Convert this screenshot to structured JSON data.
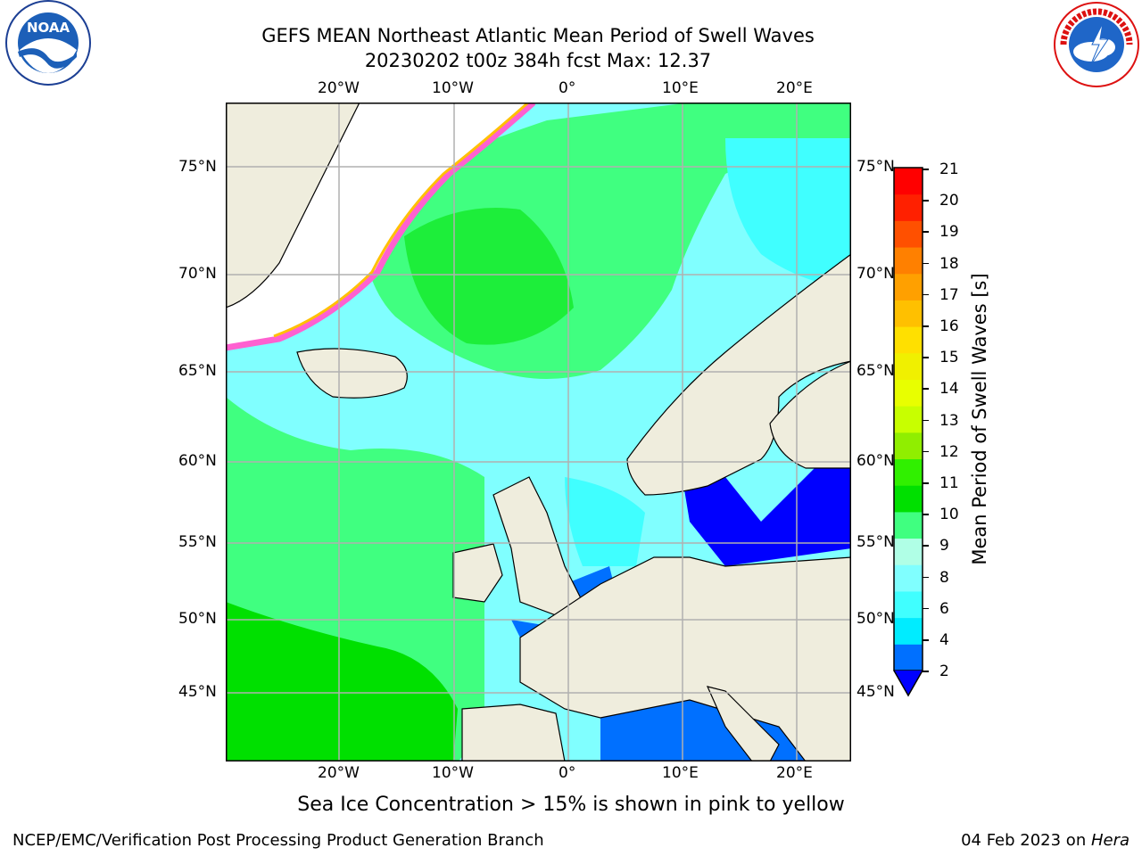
{
  "header": {
    "title_line1": "GEFS MEAN Northeast Atlantic Mean Period of Swell Waves",
    "title_line2": "20230202 t00z 384h fcst   Max: 12.37"
  },
  "logos": {
    "left": {
      "name": "NOAA",
      "ring_text": "NATIONAL OCEANIC AND ATMOSPHERIC ADMINISTRATION · U.S. DEPARTMENT OF COMMERCE"
    },
    "right": {
      "name": "NATIONAL WEATHER SERVICE"
    }
  },
  "map": {
    "lon_labels": [
      "20°W",
      "10°W",
      "0°",
      "10°E",
      "20°E"
    ],
    "lat_labels": [
      "75°N",
      "70°N",
      "65°N",
      "60°N",
      "55°N",
      "50°N",
      "45°N"
    ],
    "land_color": "#efeddd",
    "open_water_color": "#ffffff",
    "grid_color": "#b0b0b0"
  },
  "colorbar": {
    "label": "Mean Period of Swell Waves [s]",
    "ticks": [
      "21",
      "20",
      "19",
      "18",
      "17",
      "16",
      "15",
      "14",
      "13",
      "12",
      "11",
      "10",
      "9",
      "8",
      "6",
      "4",
      "2"
    ],
    "colors_bottom_to_top": [
      "#0070ff",
      "#00ecff",
      "#40ffff",
      "#80ffff",
      "#b0ffe6",
      "#40ff80",
      "#00e000",
      "#30f000",
      "#90ee00",
      "#c8ff00",
      "#e8ff00",
      "#f0f000",
      "#ffe000",
      "#ffc000",
      "#ffa000",
      "#ff8000",
      "#ff5000",
      "#ff2000",
      "#ff0000"
    ],
    "extend_color": "#0000ff"
  },
  "note": "Sea Ice Concentration > 15% is shown in pink to yellow",
  "footer": {
    "left": "NCEP/EMC/Verification Post Processing Product Generation Branch",
    "date": "04 Feb 2023 on ",
    "host": "Hera"
  }
}
